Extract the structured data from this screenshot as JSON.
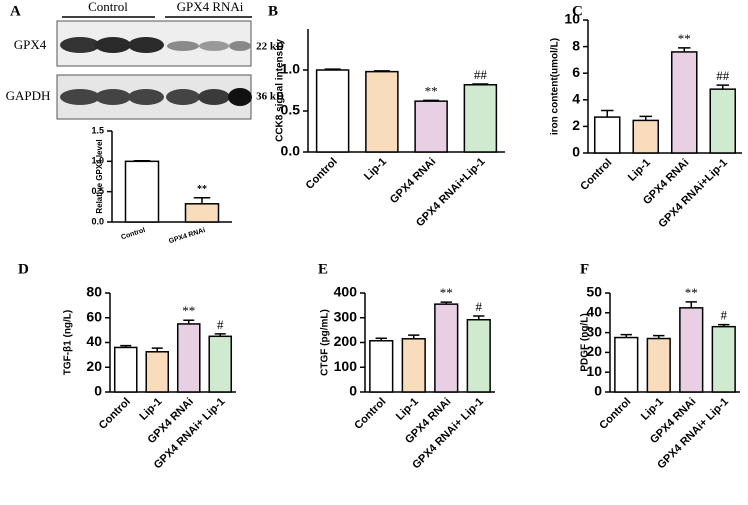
{
  "blot": {
    "panel": "A",
    "groups": [
      "Control",
      "GPX4 RNAi"
    ],
    "rows": [
      {
        "label": "GPX4",
        "size": "22 kD"
      },
      {
        "label": "GAPDH",
        "size": "36 kD"
      }
    ]
  },
  "chart_data": [
    {
      "type": "bar",
      "ylabel": "Relative GPX4 level",
      "categories": [
        "Control",
        "GPX4 RNAi"
      ],
      "values": [
        1.0,
        0.3
      ],
      "errors": [
        0.01,
        0.1
      ],
      "annotations": [
        null,
        "**"
      ],
      "colors": [
        "#ffffff",
        "#f8dcbc"
      ],
      "ylim": [
        0,
        1.5
      ],
      "yticks": [
        {
          "value": 0,
          "label": "0.0"
        },
        {
          "value": 0.5,
          "label": "0.5"
        },
        {
          "value": 1,
          "label": "1.0"
        },
        {
          "value": 1.5,
          "label": "1.5"
        }
      ]
    },
    {
      "type": "bar",
      "panel": "B",
      "ylabel": "CCK8 signal intensity",
      "categories": [
        "Control",
        "Lip-1",
        "GPX4 RNAi",
        "GPX4 RNAi+Lip-1"
      ],
      "values": [
        1.0,
        0.98,
        0.62,
        0.82
      ],
      "errors": [
        0.01,
        0.01,
        0.01,
        0.01
      ],
      "annotations": [
        null,
        null,
        "**",
        "##"
      ],
      "colors": [
        "#ffffff",
        "#f8dcbc",
        "#e8cfe3",
        "#cfeacf"
      ],
      "ylim": [
        0,
        1.5
      ],
      "yticks": [
        {
          "value": 0,
          "label": "0.0"
        },
        {
          "value": 0.5,
          "label": "0.5"
        },
        {
          "value": 1,
          "label": "1.0"
        }
      ]
    },
    {
      "type": "bar",
      "panel": "C",
      "ylabel": "iron content(umol/L)",
      "categories": [
        "Control",
        "Lip-1",
        "GPX4 RNAi",
        "GPX4 RNAi+Lip-1"
      ],
      "values": [
        2.7,
        2.45,
        7.6,
        4.8
      ],
      "errors": [
        0.5,
        0.3,
        0.3,
        0.3
      ],
      "annotations": [
        null,
        null,
        "**",
        "##"
      ],
      "colors": [
        "#ffffff",
        "#f8dcbc",
        "#e8cfe3",
        "#cfeacf"
      ],
      "ylim": [
        0,
        10
      ],
      "yticks": [
        0,
        2,
        4,
        6,
        8,
        10
      ]
    },
    {
      "type": "bar",
      "panel": "D",
      "ylabel": "TGF-β1 (ng/L)",
      "categories": [
        "Control",
        "Lip-1",
        "GPX4 RNAi",
        "GPX4 RNAi+ Lip-1"
      ],
      "values": [
        36,
        32.5,
        55,
        45
      ],
      "errors": [
        1.5,
        3,
        3,
        2
      ],
      "annotations": [
        null,
        null,
        "**",
        "#"
      ],
      "colors": [
        "#ffffff",
        "#f8dcbc",
        "#e8cfe3",
        "#cfeacf"
      ],
      "ylim": [
        0,
        80
      ],
      "yticks": [
        0,
        20,
        40,
        60,
        80
      ]
    },
    {
      "type": "bar",
      "panel": "E",
      "ylabel": "CTGF (pg/mL)",
      "categories": [
        "Control",
        "Lip-1",
        "GPX4 RNAi",
        "GPX4 RNAi+ Lip-1"
      ],
      "values": [
        207,
        215,
        355,
        292
      ],
      "errors": [
        10,
        15,
        8,
        15
      ],
      "annotations": [
        null,
        null,
        "**",
        "#"
      ],
      "colors": [
        "#ffffff",
        "#f8dcbc",
        "#e8cfe3",
        "#cfeacf"
      ],
      "ylim": [
        0,
        400
      ],
      "yticks": [
        0,
        100,
        200,
        300,
        400
      ]
    },
    {
      "type": "bar",
      "panel": "F",
      "ylabel": "PDGF (ng/L)",
      "categories": [
        "Control",
        "Lip-1",
        "GPX4 RNAi",
        "GPX4 RNAi+ Lip-1"
      ],
      "values": [
        27.5,
        27,
        42.5,
        33
      ],
      "errors": [
        1.5,
        1.5,
        3,
        1
      ],
      "annotations": [
        null,
        null,
        "**",
        "#"
      ],
      "colors": [
        "#ffffff",
        "#f8dcbc",
        "#e8cfe3",
        "#cfeacf"
      ],
      "ylim": [
        0,
        50
      ],
      "yticks": [
        0,
        10,
        20,
        30,
        40,
        50
      ]
    }
  ]
}
